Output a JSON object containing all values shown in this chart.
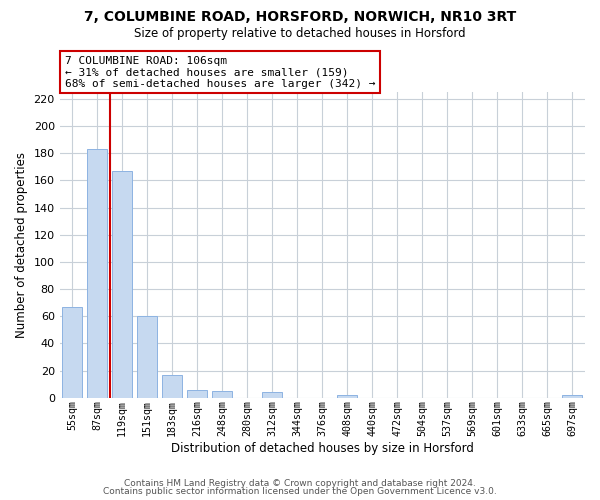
{
  "title_line1": "7, COLUMBINE ROAD, HORSFORD, NORWICH, NR10 3RT",
  "title_line2": "Size of property relative to detached houses in Horsford",
  "xlabel": "Distribution of detached houses by size in Horsford",
  "ylabel": "Number of detached properties",
  "bar_labels": [
    "55sqm",
    "87sqm",
    "119sqm",
    "151sqm",
    "183sqm",
    "216sqm",
    "248sqm",
    "280sqm",
    "312sqm",
    "344sqm",
    "376sqm",
    "408sqm",
    "440sqm",
    "472sqm",
    "504sqm",
    "537sqm",
    "569sqm",
    "601sqm",
    "633sqm",
    "665sqm",
    "697sqm"
  ],
  "bar_values": [
    67,
    183,
    167,
    60,
    17,
    6,
    5,
    0,
    4,
    0,
    0,
    2,
    0,
    0,
    0,
    0,
    0,
    0,
    0,
    0,
    2
  ],
  "bar_color": "#c6d9f0",
  "bar_edge_color": "#8db3e2",
  "grid_color": "#c8d0d8",
  "annotation_line1": "7 COLUMBINE ROAD: 106sqm",
  "annotation_line2": "← 31% of detached houses are smaller (159)",
  "annotation_line3": "68% of semi-detached houses are larger (342) →",
  "annotation_box_color": "#ffffff",
  "annotation_box_edge_color": "#cc0000",
  "ref_line_color": "#cc0000",
  "ref_line_xindex": 1,
  "ylim": [
    0,
    225
  ],
  "yticks": [
    0,
    20,
    40,
    60,
    80,
    100,
    120,
    140,
    160,
    180,
    200,
    220
  ],
  "footer_line1": "Contains HM Land Registry data © Crown copyright and database right 2024.",
  "footer_line2": "Contains public sector information licensed under the Open Government Licence v3.0."
}
